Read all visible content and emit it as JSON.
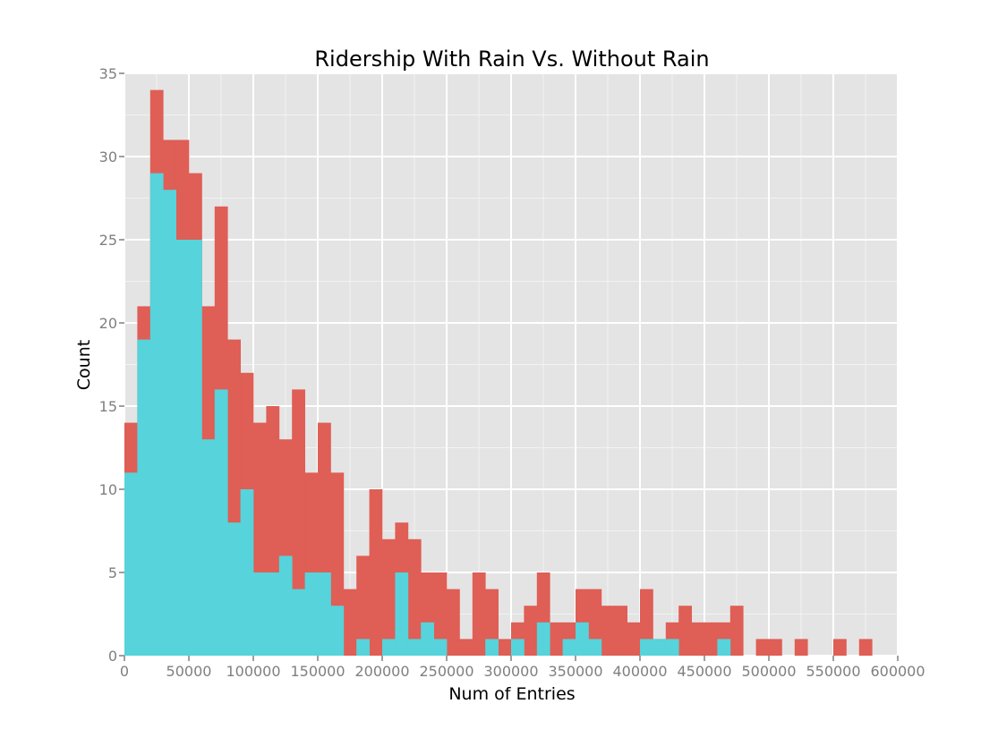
{
  "chart_data": {
    "type": "bar",
    "title": "Ridership With Rain Vs. Without Rain",
    "xlabel": "Num of Entries",
    "ylabel": "Count",
    "xlim": [
      0,
      600000
    ],
    "ylim": [
      0,
      35
    ],
    "bin_width": 10000,
    "x_ticks": [
      "0",
      "50000",
      "100000",
      "150000",
      "200000",
      "250000",
      "300000",
      "350000",
      "400000",
      "450000",
      "500000",
      "550000",
      "600000"
    ],
    "y_ticks": [
      "0",
      "5",
      "10",
      "15",
      "20",
      "25",
      "30",
      "35"
    ],
    "grid": true,
    "colors": {
      "panel": "#e4e4e4",
      "grid": "#ffffff",
      "red_series": "#df5e55",
      "cyan_series": "#56d3db"
    },
    "bin_starts": [
      0,
      10000,
      20000,
      30000,
      40000,
      50000,
      60000,
      70000,
      80000,
      90000,
      100000,
      110000,
      120000,
      130000,
      140000,
      150000,
      160000,
      170000,
      180000,
      190000,
      200000,
      210000,
      220000,
      230000,
      240000,
      250000,
      260000,
      270000,
      280000,
      290000,
      300000,
      310000,
      320000,
      330000,
      340000,
      350000,
      360000,
      370000,
      380000,
      390000,
      400000,
      410000,
      420000,
      430000,
      440000,
      450000,
      460000,
      470000,
      480000,
      490000,
      500000,
      510000,
      520000,
      530000,
      540000,
      550000,
      560000,
      570000,
      580000,
      590000
    ],
    "series": [
      {
        "color": "#df5e55",
        "values": [
          14,
          21,
          34,
          31,
          31,
          29,
          21,
          27,
          19,
          17,
          14,
          15,
          13,
          16,
          11,
          14,
          11,
          4,
          6,
          10,
          7,
          8,
          7,
          5,
          5,
          4,
          1,
          5,
          4,
          1,
          2,
          3,
          5,
          2,
          2,
          4,
          4,
          3,
          3,
          2,
          4,
          1,
          2,
          3,
          2,
          2,
          2,
          3,
          0,
          1,
          1,
          0,
          1,
          0,
          0,
          1,
          0,
          1,
          0,
          0
        ]
      },
      {
        "color": "#56d3db",
        "values": [
          11,
          19,
          29,
          28,
          25,
          25,
          13,
          16,
          8,
          10,
          5,
          5,
          6,
          4,
          5,
          5,
          3,
          0,
          1,
          0,
          1,
          5,
          1,
          2,
          1,
          0,
          0,
          0,
          1,
          0,
          1,
          0,
          2,
          0,
          1,
          2,
          1,
          0,
          0,
          0,
          1,
          1,
          1,
          0,
          0,
          0,
          1,
          0,
          0,
          0,
          0,
          0,
          0,
          0,
          0,
          0,
          0,
          0,
          0,
          0
        ]
      }
    ]
  }
}
